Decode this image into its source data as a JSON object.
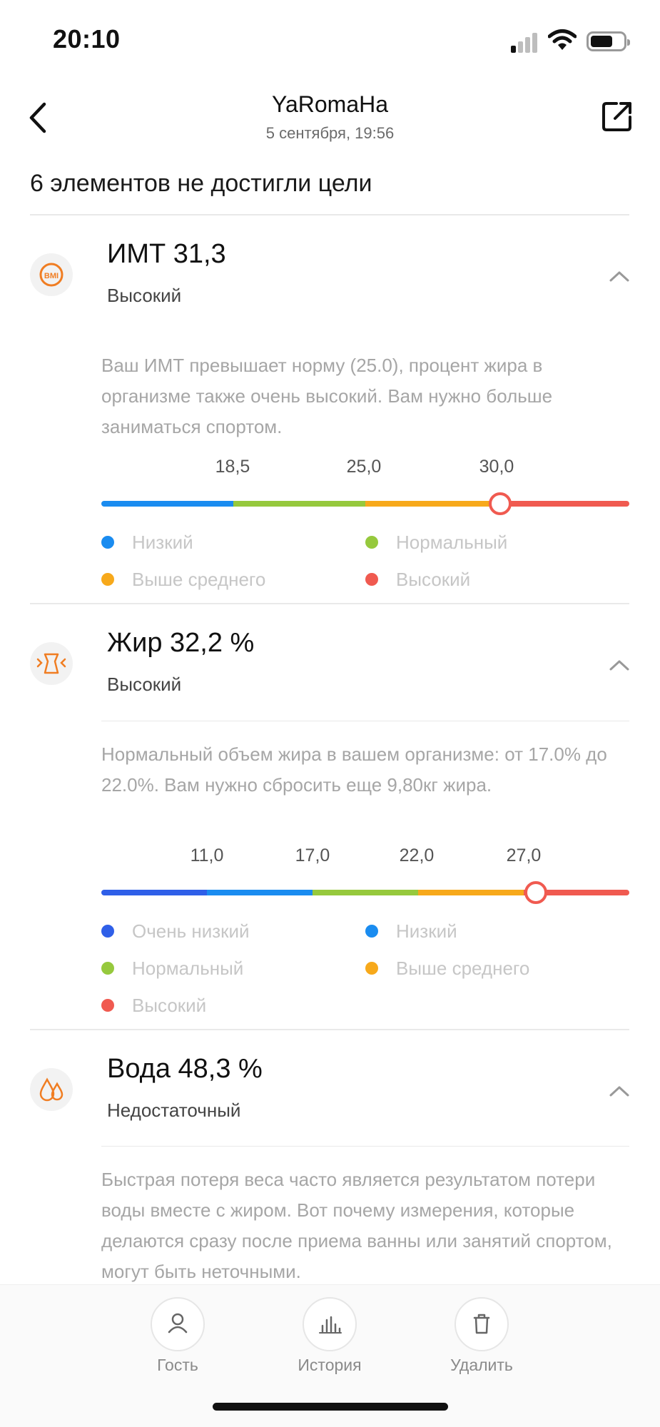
{
  "status_bar": {
    "time": "20:10"
  },
  "header": {
    "title": "YaRomaHa",
    "subtitle": "5 сентября, 19:56"
  },
  "summary": "6 элементов не достигли цели",
  "colors": {
    "accent": "#f07d22",
    "very_low": "#2f5fe8",
    "low": "#1a8cf0",
    "normal": "#96c93d",
    "above_average": "#f7a91b",
    "high": "#f05a50"
  },
  "sections": [
    {
      "icon": "bmi-icon",
      "title": "ИМТ 31,3",
      "status": "Высокий",
      "description": "Ваш ИМТ превышает норму (25.0), процент жира в организме также очень высокий. Вам нужно больше заниматься спортом.",
      "ticks": [
        "18,5",
        "25,0",
        "30,0"
      ],
      "marker_value": 0.755,
      "legend": [
        "Низкий",
        "Нормальный",
        "Выше среднего",
        "Высокий"
      ]
    },
    {
      "icon": "body-fat-icon",
      "title": "Жир 32,2 %",
      "status": "Высокий",
      "description": "Нормальный объем жира в вашем организме: от 17.0% до 22.0%. Вам нужно сбросить еще 9,80кг жира.",
      "ticks": [
        "11,0",
        "17,0",
        "22,0",
        "27,0"
      ],
      "marker_value": 0.823,
      "legend": [
        "Очень низкий",
        "Низкий",
        "Нормальный",
        "Выше среднего",
        "Высокий"
      ]
    },
    {
      "icon": "water-drops-icon",
      "title": "Вода 48,3 %",
      "status": "Недостаточный",
      "description": "Быстрая потеря веса часто является результатом потери воды вместе с жиром. Вот почему измерения, которые делаются сразу после приема ванны или занятий спортом, могут быть неточными."
    }
  ],
  "bottom_nav": [
    {
      "icon": "user-icon",
      "label": "Гость"
    },
    {
      "icon": "history-chart-icon",
      "label": "История"
    },
    {
      "icon": "trash-icon",
      "label": "Удалить"
    }
  ]
}
